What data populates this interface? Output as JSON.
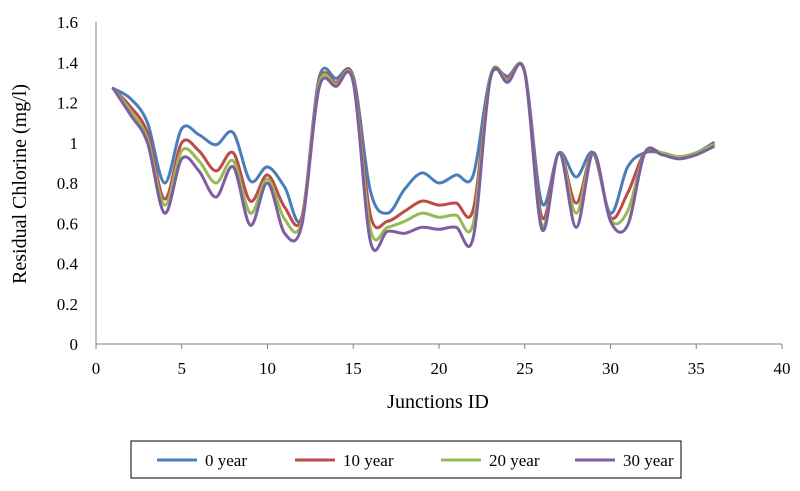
{
  "chart_data": {
    "type": "line",
    "title": "",
    "xlabel": "Junctions ID",
    "ylabel": "Residual Chlorine (mg/l)",
    "xlim": [
      0,
      40
    ],
    "ylim": [
      0,
      1.6
    ],
    "xticks": [
      0,
      5,
      10,
      15,
      20,
      25,
      30,
      35,
      40
    ],
    "yticks": [
      0,
      0.2,
      0.4,
      0.6,
      0.8,
      1,
      1.2,
      1.4,
      1.6
    ],
    "grid": false,
    "legend_position": "bottom",
    "x": [
      1,
      2,
      3,
      4,
      5,
      6,
      7,
      8,
      9,
      10,
      11,
      12,
      13,
      14,
      15,
      16,
      17,
      18,
      19,
      20,
      21,
      22,
      23,
      24,
      25,
      26,
      27,
      28,
      29,
      30,
      31,
      32,
      33,
      34,
      35,
      36
    ],
    "series": [
      {
        "name": "0 year",
        "color": "#4a7ebb",
        "values": [
          1.27,
          1.22,
          1.1,
          0.8,
          1.07,
          1.04,
          0.99,
          1.05,
          0.81,
          0.88,
          0.78,
          0.63,
          1.32,
          1.32,
          1.33,
          0.76,
          0.65,
          0.77,
          0.85,
          0.8,
          0.84,
          0.84,
          1.33,
          1.33,
          1.35,
          0.7,
          0.95,
          0.83,
          0.95,
          0.65,
          0.88,
          0.95,
          0.95,
          0.93,
          0.95,
          1.0
        ]
      },
      {
        "name": "10 year",
        "color": "#be4b48",
        "values": [
          1.27,
          1.18,
          1.05,
          0.72,
          1.0,
          0.96,
          0.86,
          0.95,
          0.71,
          0.84,
          0.68,
          0.63,
          1.3,
          1.3,
          1.32,
          0.64,
          0.61,
          0.66,
          0.71,
          0.69,
          0.7,
          0.67,
          1.33,
          1.32,
          1.35,
          0.63,
          0.95,
          0.7,
          0.95,
          0.63,
          0.75,
          0.95,
          0.95,
          0.93,
          0.95,
          0.99
        ]
      },
      {
        "name": "20 year",
        "color": "#98b954",
        "values": [
          1.27,
          1.16,
          1.02,
          0.69,
          0.96,
          0.91,
          0.8,
          0.91,
          0.65,
          0.82,
          0.62,
          0.61,
          1.29,
          1.29,
          1.31,
          0.57,
          0.58,
          0.61,
          0.65,
          0.63,
          0.64,
          0.6,
          1.33,
          1.31,
          1.35,
          0.59,
          0.95,
          0.65,
          0.95,
          0.62,
          0.66,
          0.95,
          0.95,
          0.93,
          0.95,
          0.99
        ]
      },
      {
        "name": "30 year",
        "color": "#7d5fa0",
        "values": [
          1.27,
          1.14,
          1.0,
          0.65,
          0.92,
          0.86,
          0.73,
          0.88,
          0.59,
          0.8,
          0.55,
          0.59,
          1.27,
          1.28,
          1.3,
          0.51,
          0.56,
          0.55,
          0.58,
          0.57,
          0.58,
          0.53,
          1.32,
          1.3,
          1.35,
          0.57,
          0.95,
          0.58,
          0.95,
          0.61,
          0.59,
          0.95,
          0.94,
          0.92,
          0.94,
          0.98
        ]
      }
    ]
  }
}
